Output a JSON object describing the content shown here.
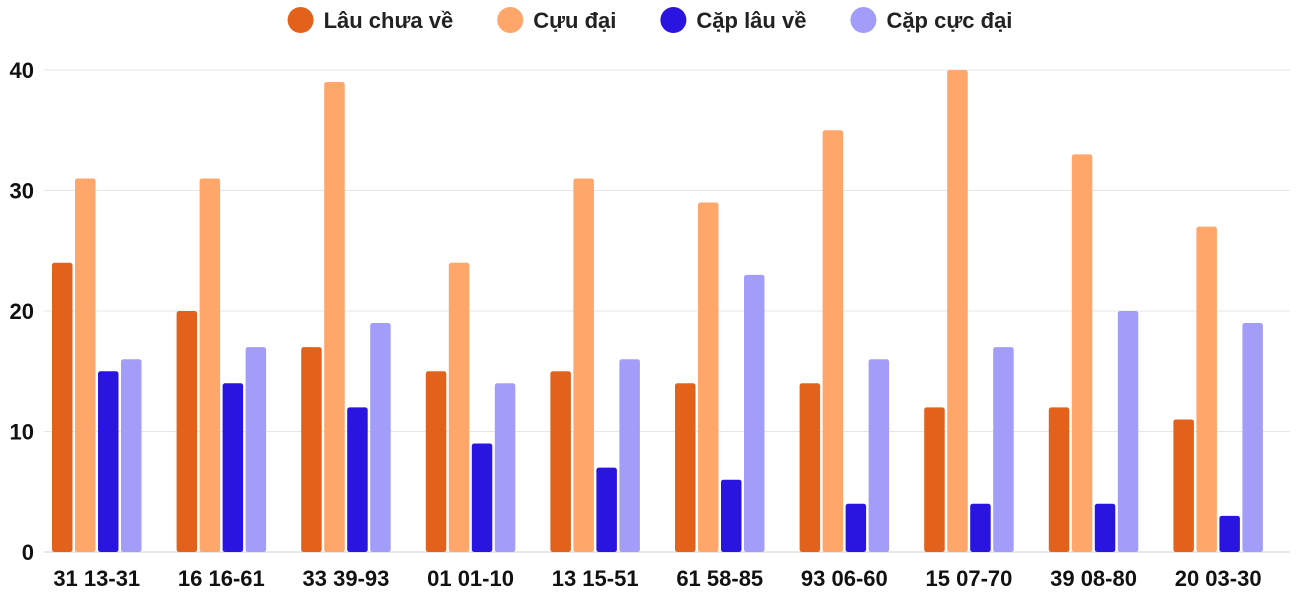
{
  "chart_data": {
    "type": "bar",
    "categories": [
      "31 13-31",
      "16 16-61",
      "33 39-93",
      "01 01-10",
      "13 15-51",
      "61 58-85",
      "93 06-60",
      "15 07-70",
      "39 08-80",
      "20 03-30"
    ],
    "series": [
      {
        "name": "Lâu chưa về",
        "color": "#e2621b",
        "values": [
          24,
          20,
          17,
          15,
          15,
          14,
          14,
          12,
          12,
          11
        ]
      },
      {
        "name": "Cựu đại",
        "color": "#ffa66b",
        "values": [
          31,
          31,
          39,
          24,
          31,
          29,
          35,
          40,
          33,
          27
        ]
      },
      {
        "name": "Cặp lâu về",
        "color": "#2a14e0",
        "values": [
          15,
          14,
          12,
          9,
          7,
          6,
          4,
          4,
          4,
          3
        ]
      },
      {
        "name": "Cặp cực đại",
        "color": "#a39dfa",
        "values": [
          16,
          17,
          19,
          14,
          16,
          23,
          16,
          17,
          20,
          19
        ]
      }
    ],
    "yticks": [
      "0",
      "10",
      "20",
      "30",
      "40"
    ],
    "ylim": [
      0,
      40
    ],
    "grid": true,
    "legend": "top-center",
    "title": "",
    "xlabel": "",
    "ylabel": ""
  }
}
